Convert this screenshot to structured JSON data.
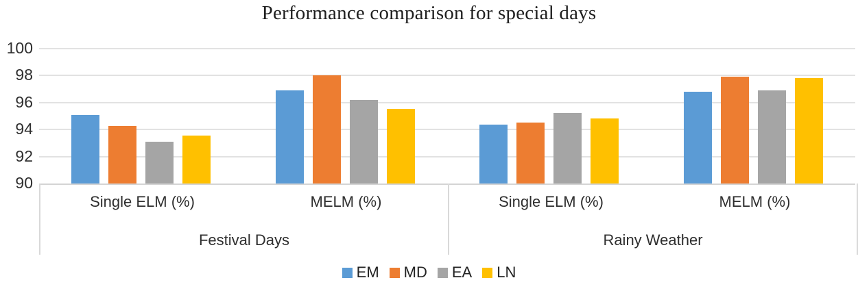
{
  "chart_data": {
    "type": "bar",
    "title": "Performance comparison for special days",
    "xlabel": "",
    "ylabel": "",
    "ylim": [
      90,
      100
    ],
    "yticks": [
      90,
      92,
      94,
      96,
      98,
      100
    ],
    "grid": true,
    "legend_position": "bottom",
    "group_labels": [
      "Festival Days",
      "Rainy Weather"
    ],
    "categories": [
      {
        "group": "Festival Days",
        "label": "Single ELM (%)"
      },
      {
        "group": "Festival Days",
        "label": "MELM (%)"
      },
      {
        "group": "Rainy Weather",
        "label": "Single ELM (%)"
      },
      {
        "group": "Rainy Weather",
        "label": "MELM (%)"
      }
    ],
    "series": [
      {
        "name": "EM",
        "color": "#5B9BD5",
        "values": [
          95.1,
          96.9,
          94.35,
          96.8
        ]
      },
      {
        "name": "MD",
        "color": "#ED7D31",
        "values": [
          94.25,
          98.0,
          94.5,
          97.9
        ]
      },
      {
        "name": "EA",
        "color": "#A5A5A5",
        "values": [
          93.1,
          96.2,
          95.25,
          96.9
        ]
      },
      {
        "name": "LN",
        "color": "#FFC000",
        "values": [
          93.55,
          95.55,
          94.8,
          97.8
        ]
      }
    ],
    "legend": [
      "EM",
      "MD",
      "EA",
      "LN"
    ]
  },
  "colors": {
    "gridline": "#E2E2E2",
    "axis_line": "#D4D4D4",
    "band_border": "#D9D9D9",
    "tick_text": "#303030",
    "title_text": "#1F1F1F"
  }
}
